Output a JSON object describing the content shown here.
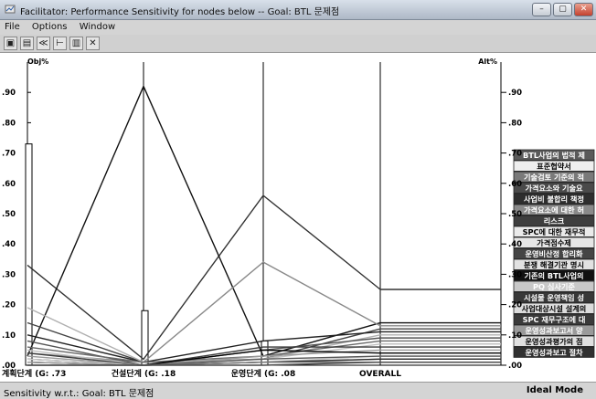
{
  "window": {
    "title": "Facilitator: Performance Sensitivity for nodes below -- Goal: BTL 문제점",
    "controls": [
      "–",
      "▢",
      "✕"
    ]
  },
  "menu": [
    "File",
    "Options",
    "Window"
  ],
  "toolbar": {
    "icons": [
      "print-icon",
      "copy-icon",
      "sort-icon",
      "grid-icon",
      "export-icon",
      "delete-icon"
    ],
    "glyphs": [
      "▣",
      "▤",
      "≪",
      "⊢",
      "▥",
      "✕"
    ]
  },
  "status": {
    "left": "Sensitivity w.r.t.: Goal: BTL 문제점",
    "right": "Ideal Mode"
  },
  "chart_data": {
    "type": "line",
    "left_axis_label": "Obj%",
    "right_axis_label": "Alt%",
    "ylim": [
      0,
      1.0
    ],
    "left_ticks": [
      ".90",
      ".80",
      ".70",
      ".60",
      ".50",
      ".40",
      ".30",
      ".20",
      ".10",
      ".00"
    ],
    "right_ticks": [
      ".90",
      ".80",
      ".70",
      ".60",
      ".50",
      ".40",
      ".30",
      ".20",
      ".10",
      ".00"
    ],
    "categories": [
      "계획단계 (G: .73",
      "건설단계 (G: .18",
      "운영단계 (G: .08",
      "OVERALL"
    ],
    "objective_bars": [
      0.73,
      0.18,
      0.08
    ],
    "alternatives": [
      {
        "name": "BTL사업의 법적 제",
        "color": "#333333",
        "values": [
          0.33,
          0.02,
          0.56,
          0.25
        ]
      },
      {
        "name": "표준협약서",
        "color": "#111111",
        "values": [
          0.03,
          0.92,
          0.03,
          0.14
        ]
      },
      {
        "name": "기술검토 기준의 적",
        "color": "#8a8a8a",
        "values": [
          0.04,
          0.01,
          0.34,
          0.13
        ]
      },
      {
        "name": "가격요소와 기술요",
        "color": "#444444",
        "values": [
          0.14,
          0.01,
          0.02,
          0.12
        ]
      },
      {
        "name": "사업비 불합리 책정",
        "color": "#222222",
        "values": [
          0.1,
          0.01,
          0.08,
          0.11
        ]
      },
      {
        "name": "가격요소에 대한 허",
        "color": "#b0b0b0",
        "values": [
          0.19,
          0.01,
          0.02,
          0.1
        ]
      },
      {
        "name": "리스크",
        "color": "#555555",
        "values": [
          0.08,
          0.0,
          0.05,
          0.09
        ]
      },
      {
        "name": "SPC에 대한 재무적",
        "color": "#6a6a6a",
        "values": [
          0.06,
          0.01,
          0.03,
          0.08
        ]
      },
      {
        "name": "가격점수제",
        "color": "#c0c0c0",
        "values": [
          0.05,
          0.0,
          0.02,
          0.07
        ]
      },
      {
        "name": "운영비산정 합리화",
        "color": "#3a3a3a",
        "values": [
          0.04,
          0.0,
          0.06,
          0.06
        ]
      },
      {
        "name": "분쟁 해결기관 명시",
        "color": "#999999",
        "values": [
          0.03,
          0.0,
          0.03,
          0.05
        ]
      },
      {
        "name": "기존의 BTL사업의",
        "color": "#000000",
        "values": [
          0.02,
          0.0,
          0.05,
          0.04
        ]
      },
      {
        "name": "PQ 심사기준",
        "color": "#d0d0d0",
        "values": [
          0.02,
          0.0,
          0.01,
          0.03
        ]
      },
      {
        "name": "시설물 운영책임 성",
        "color": "#555555",
        "values": [
          0.01,
          0.0,
          0.02,
          0.03
        ]
      },
      {
        "name": "사업대상시설 설계의",
        "color": "#888888",
        "values": [
          0.01,
          0.0,
          0.01,
          0.02
        ]
      },
      {
        "name": "SPC 재무구조에 대",
        "color": "#2a2a2a",
        "values": [
          0.01,
          0.0,
          0.01,
          0.02
        ]
      },
      {
        "name": "운영성과보고서 양",
        "color": "#a5a5a5",
        "values": [
          0.01,
          0.0,
          0.01,
          0.01
        ]
      },
      {
        "name": "운영성과평가의 점",
        "color": "#777777",
        "values": [
          0.0,
          0.0,
          0.01,
          0.01
        ]
      },
      {
        "name": "운영성과보고 절차",
        "color": "#4a4a4a",
        "values": [
          0.0,
          0.0,
          0.0,
          0.01
        ]
      }
    ],
    "legend_styles": [
      {
        "bg": "#5a5a5a",
        "fg": "#ffffff"
      },
      {
        "bg": "#efefef",
        "fg": "#000000"
      },
      {
        "bg": "#7a7a7a",
        "fg": "#ffffff"
      },
      {
        "bg": "#4a4a4a",
        "fg": "#ffffff"
      },
      {
        "bg": "#2e2e2e",
        "fg": "#ffffff"
      },
      {
        "bg": "#8a8a8a",
        "fg": "#ffffff"
      },
      {
        "bg": "#3e3e3e",
        "fg": "#ffffff"
      },
      {
        "bg": "#eaeaea",
        "fg": "#000000"
      },
      {
        "bg": "#e6e6e6",
        "fg": "#000000"
      },
      {
        "bg": "#454545",
        "fg": "#ffffff"
      },
      {
        "bg": "#e2e2e2",
        "fg": "#000000"
      },
      {
        "bg": "#111111",
        "fg": "#ffffff"
      },
      {
        "bg": "#c8c8c8",
        "fg": "#ffffff"
      },
      {
        "bg": "#383838",
        "fg": "#ffffff"
      },
      {
        "bg": "#dcdcdc",
        "fg": "#000000"
      },
      {
        "bg": "#3a3a3a",
        "fg": "#ffffff"
      },
      {
        "bg": "#9a9a9a",
        "fg": "#ffffff"
      },
      {
        "bg": "#e0e0e0",
        "fg": "#000000"
      },
      {
        "bg": "#303030",
        "fg": "#ffffff"
      }
    ]
  }
}
